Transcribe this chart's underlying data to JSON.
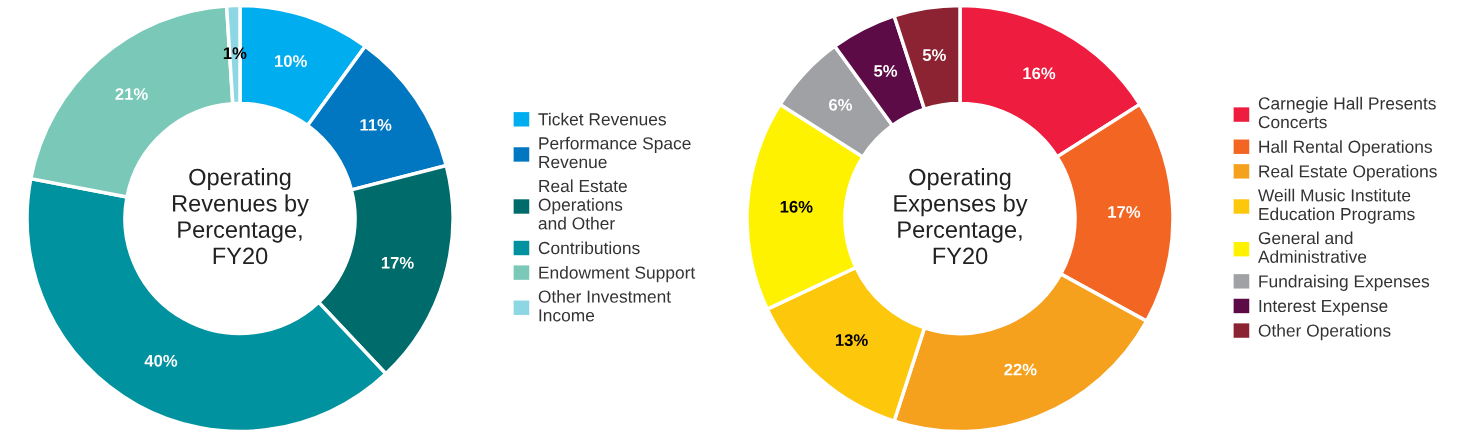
{
  "chart_data": [
    {
      "type": "donut",
      "title": "Operating\nRevenues by\nPercentage,\nFY20",
      "categories": [
        "Ticket Revenues",
        "Performance Space\nRevenue",
        "Real Estate\nOperations\nand Other",
        "Contributions",
        "Endowment Support",
        "Other Investment\nIncome"
      ],
      "values": [
        10,
        11,
        17,
        40,
        21,
        1
      ],
      "colors": [
        "#00aeef",
        "#0077c0",
        "#006b6b",
        "#00929f",
        "#79c8b8",
        "#8dd6e3"
      ],
      "value_labels": [
        "10%",
        "11%",
        "17%",
        "40%",
        "21%",
        "1%"
      ],
      "legend": "right"
    },
    {
      "type": "donut",
      "title": "Operating\nExpenses by\nPercentage,\nFY20",
      "categories": [
        "Carnegie Hall Presents\nConcerts",
        "Hall Rental Operations",
        "Real Estate Operations",
        "Weill Music Institute\nEducation Programs",
        "General and\nAdministrative",
        "Fundraising Expenses",
        "Interest Expense",
        "Other Operations"
      ],
      "values": [
        16,
        17,
        22,
        13,
        16,
        6,
        5,
        5
      ],
      "colors": [
        "#ee1c3e",
        "#f26522",
        "#f6a11e",
        "#fdc70c",
        "#fff200",
        "#a0a1a4",
        "#5c0b47",
        "#8b2332"
      ],
      "value_labels": [
        "16%",
        "17%",
        "22%",
        "13%",
        "16%",
        "6%",
        "5%",
        "5%"
      ],
      "legend": "right"
    }
  ]
}
